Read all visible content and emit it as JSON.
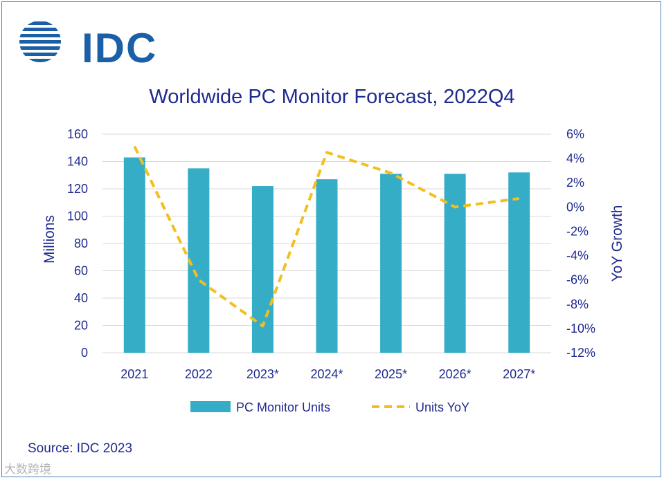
{
  "logo": {
    "text": "IDC"
  },
  "source": "Source: IDC 2023",
  "watermark": "大数跨境",
  "colors": {
    "bar": "#35adc6",
    "line": "#f2bf1e",
    "text": "#1f2a8f",
    "grid": "#d9d9d9",
    "logo": "#1b5fa7"
  },
  "chart_data": {
    "type": "bar",
    "title": "Worldwide PC Monitor Forecast, 2022Q4",
    "categories": [
      "2021",
      "2022",
      "2023*",
      "2024*",
      "2025*",
      "2026*",
      "2027*"
    ],
    "ylabel": "Millions",
    "y2label": "YoY Growth",
    "ylim": [
      0,
      160
    ],
    "y2lim": [
      -12,
      6
    ],
    "yticks": [
      "0",
      "20",
      "40",
      "60",
      "80",
      "100",
      "120",
      "140",
      "160"
    ],
    "y2ticks": [
      "-12%",
      "-10%",
      "-8%",
      "-6%",
      "-4%",
      "-2%",
      "0%",
      "2%",
      "4%",
      "6%"
    ],
    "grid": true,
    "legend_position": "bottom",
    "series": [
      {
        "name": "PC Monitor Units",
        "type": "bar",
        "axis": "left",
        "values": [
          143,
          135,
          122,
          127,
          131,
          131,
          132
        ]
      },
      {
        "name": "Units YoY",
        "type": "line-dashed",
        "axis": "right",
        "values": [
          5.0,
          -6.0,
          -9.8,
          4.5,
          2.8,
          0.0,
          0.7
        ]
      }
    ]
  }
}
